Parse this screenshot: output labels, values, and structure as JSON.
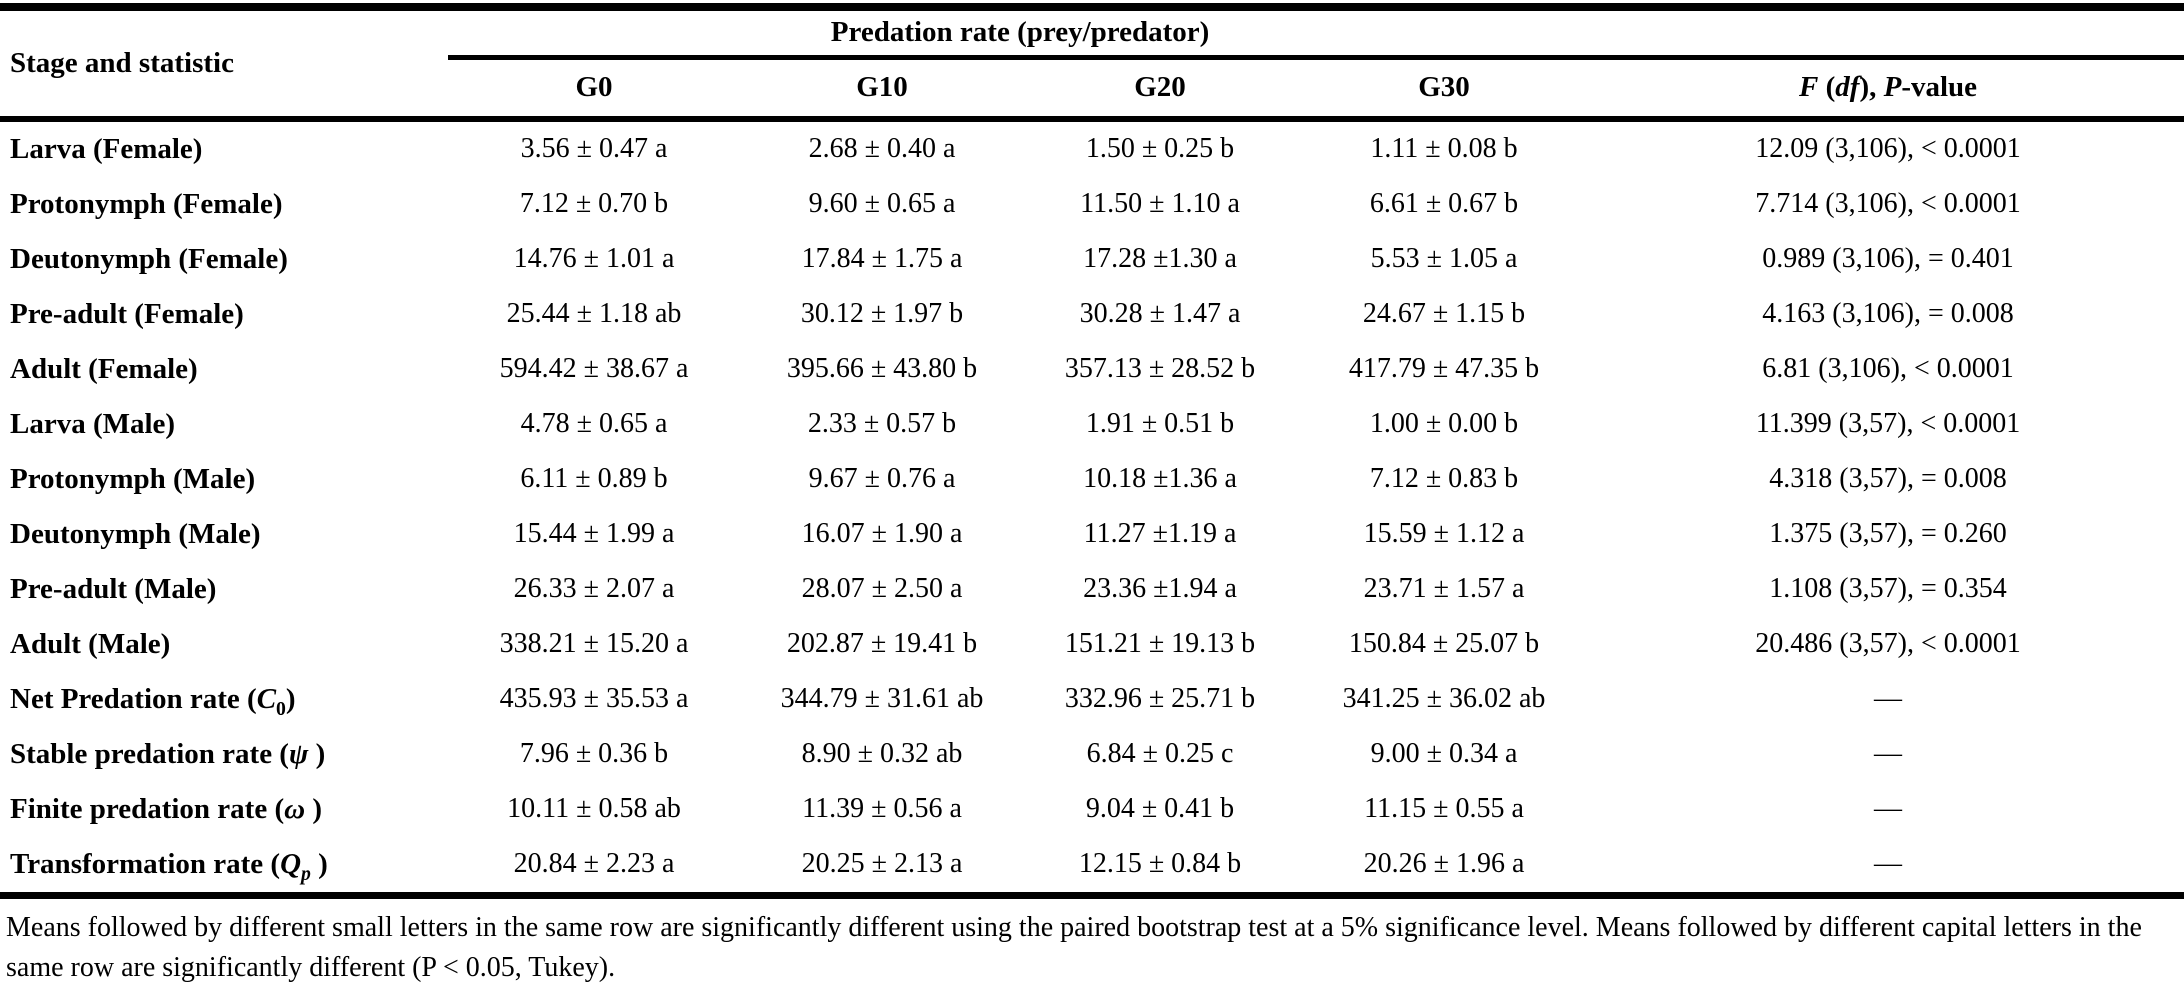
{
  "table": {
    "corner_header": "Stage and statistic",
    "spanner_header": "Predation rate (prey/predator)",
    "group_columns": [
      "G0",
      "G10",
      "G20",
      "G30"
    ],
    "stat_header_segments": [
      {
        "t": "F",
        "i": true
      },
      {
        "t": " ("
      },
      {
        "t": "df",
        "i": true
      },
      {
        "t": "), "
      },
      {
        "t": "P",
        "i": true
      },
      {
        "t": "-value"
      }
    ],
    "rows": [
      {
        "label": "Larva (Female)",
        "values": [
          "3.56 ± 0.47 a",
          "2.68 ± 0.40 a",
          "1.50 ± 0.25 b",
          "1.11 ± 0.08 b",
          "12.09 (3,106), < 0.0001"
        ]
      },
      {
        "label": "Protonymph (Female)",
        "values": [
          "7.12 ± 0.70 b",
          "9.60 ± 0.65 a",
          "11.50 ± 1.10 a",
          "6.61 ± 0.67 b",
          "7.714 (3,106), < 0.0001"
        ]
      },
      {
        "label": "Deutonymph (Female)",
        "values": [
          "14.76 ± 1.01 a",
          "17.84 ± 1.75 a",
          "17.28 ±1.30 a",
          "5.53 ± 1.05 a",
          "0.989 (3,106), = 0.401"
        ]
      },
      {
        "label": "Pre-adult (Female)",
        "values": [
          "25.44 ± 1.18 ab",
          "30.12 ± 1.97 b",
          "30.28 ± 1.47 a",
          "24.67 ± 1.15 b",
          "4.163 (3,106), = 0.008"
        ]
      },
      {
        "label": "Adult (Female)",
        "values": [
          "594.42 ± 38.67 a",
          "395.66 ± 43.80 b",
          "357.13 ± 28.52 b",
          "417.79 ± 47.35 b",
          "6.81 (3,106), < 0.0001"
        ]
      },
      {
        "label": "Larva (Male)",
        "values": [
          "4.78 ± 0.65 a",
          "2.33 ± 0.57 b",
          "1.91 ± 0.51 b",
          "1.00 ± 0.00 b",
          "11.399 (3,57), < 0.0001"
        ]
      },
      {
        "label": "Protonymph (Male)",
        "values": [
          "6.11 ± 0.89 b",
          "9.67 ± 0.76 a",
          "10.18 ±1.36 a",
          "7.12 ± 0.83 b",
          "4.318 (3,57), = 0.008"
        ]
      },
      {
        "label": "Deutonymph (Male)",
        "values": [
          "15.44 ± 1.99 a",
          "16.07 ± 1.90 a",
          "11.27 ±1.19 a",
          "15.59 ± 1.12 a",
          "1.375 (3,57), = 0.260"
        ]
      },
      {
        "label": "Pre-adult (Male)",
        "values": [
          "26.33 ± 2.07 a",
          "28.07 ± 2.50 a",
          "23.36 ±1.94 a",
          "23.71 ± 1.57 a",
          "1.108 (3,57), = 0.354"
        ]
      },
      {
        "label": "Adult (Male)",
        "values": [
          "338.21 ± 15.20 a",
          "202.87 ± 19.41 b",
          "151.21 ± 19.13 b",
          "150.84 ± 25.07 b",
          "20.486 (3,57), < 0.0001"
        ]
      },
      {
        "label_segments": [
          {
            "t": "Net Predation rate ("
          },
          {
            "t": "C",
            "i": true
          },
          {
            "t": "0",
            "sub": true
          },
          {
            "t": ")"
          }
        ],
        "values": [
          "435.93 ± 35.53 a",
          "344.79 ± 31.61 ab",
          "332.96 ± 25.71 b",
          "341.25 ± 36.02 ab",
          "—"
        ]
      },
      {
        "label_segments": [
          {
            "t": "Stable predation rate ("
          },
          {
            "t": "ψ",
            "i": true
          },
          {
            "t": " )"
          }
        ],
        "values": [
          "7.96 ± 0.36 b",
          "8.90 ± 0.32 ab",
          "6.84 ± 0.25 c",
          "9.00 ± 0.34 a",
          "—"
        ]
      },
      {
        "label_segments": [
          {
            "t": "Finite predation rate ("
          },
          {
            "t": "ω",
            "i": true
          },
          {
            "t": " )"
          }
        ],
        "values": [
          "10.11 ± 0.58 ab",
          "11.39 ± 0.56 a",
          "9.04 ± 0.41 b",
          "11.15 ± 0.55 a",
          "—"
        ]
      },
      {
        "label_segments": [
          {
            "t": "Transformation rate ("
          },
          {
            "t": "Q",
            "i": true
          },
          {
            "t": "p",
            "i": true,
            "sub": true
          },
          {
            "t": " )"
          }
        ],
        "values": [
          "20.84 ± 2.23 a",
          "20.25 ± 2.13 a",
          "12.15 ± 0.84 b",
          "20.26 ± 1.96 a",
          "—"
        ]
      }
    ]
  },
  "footnote": "Means followed by different small letters in the same row are significantly different using the paired bootstrap test at a 5% significance level. Means followed by different capital letters in the same row are significantly different (P < 0.05, Tukey)."
}
